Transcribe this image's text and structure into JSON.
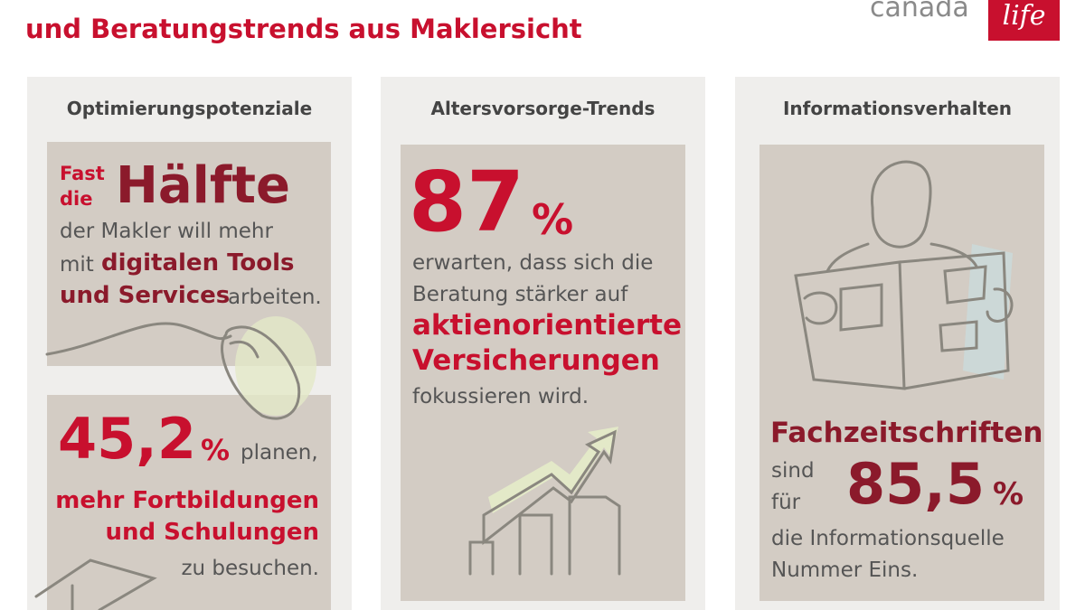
{
  "header": {
    "title": "und Beratungstrends aus Maklersicht",
    "logo": {
      "brand": "canada",
      "mark": "life"
    }
  },
  "panels": [
    {
      "title": "Optimierungspotenziale",
      "cards": [
        {
          "pre": [
            "Fast",
            "die"
          ],
          "headline": "Hälfte",
          "line1": "der Makler will mehr",
          "line2_plain": "mit",
          "line2_bold": "digitalen Tools",
          "line3_bold": "und Services",
          "line3_plain": "arbeiten."
        },
        {
          "number": "45,2",
          "unit": "%",
          "after": "planen,",
          "bold": [
            "mehr Fortbildungen",
            "und Schulungen"
          ],
          "tail": "zu besuchen."
        }
      ]
    },
    {
      "title": "Altersvorsorge-Trends",
      "cards": [
        {
          "number": "87",
          "unit": "%",
          "lines": [
            "erwarten, dass sich die",
            "Beratung stärker auf"
          ],
          "bold": [
            "aktienorientierte",
            "Versicherungen"
          ],
          "tail": "fokussieren wird."
        }
      ]
    },
    {
      "title": "Informationsverhalten",
      "cards": [
        {
          "headline": "Fachzeitschriften",
          "small": [
            "sind",
            "für"
          ],
          "number": "85,5",
          "unit": "%",
          "lines": [
            "die Informationsquelle",
            "Nummer Eins."
          ]
        }
      ]
    }
  ]
}
